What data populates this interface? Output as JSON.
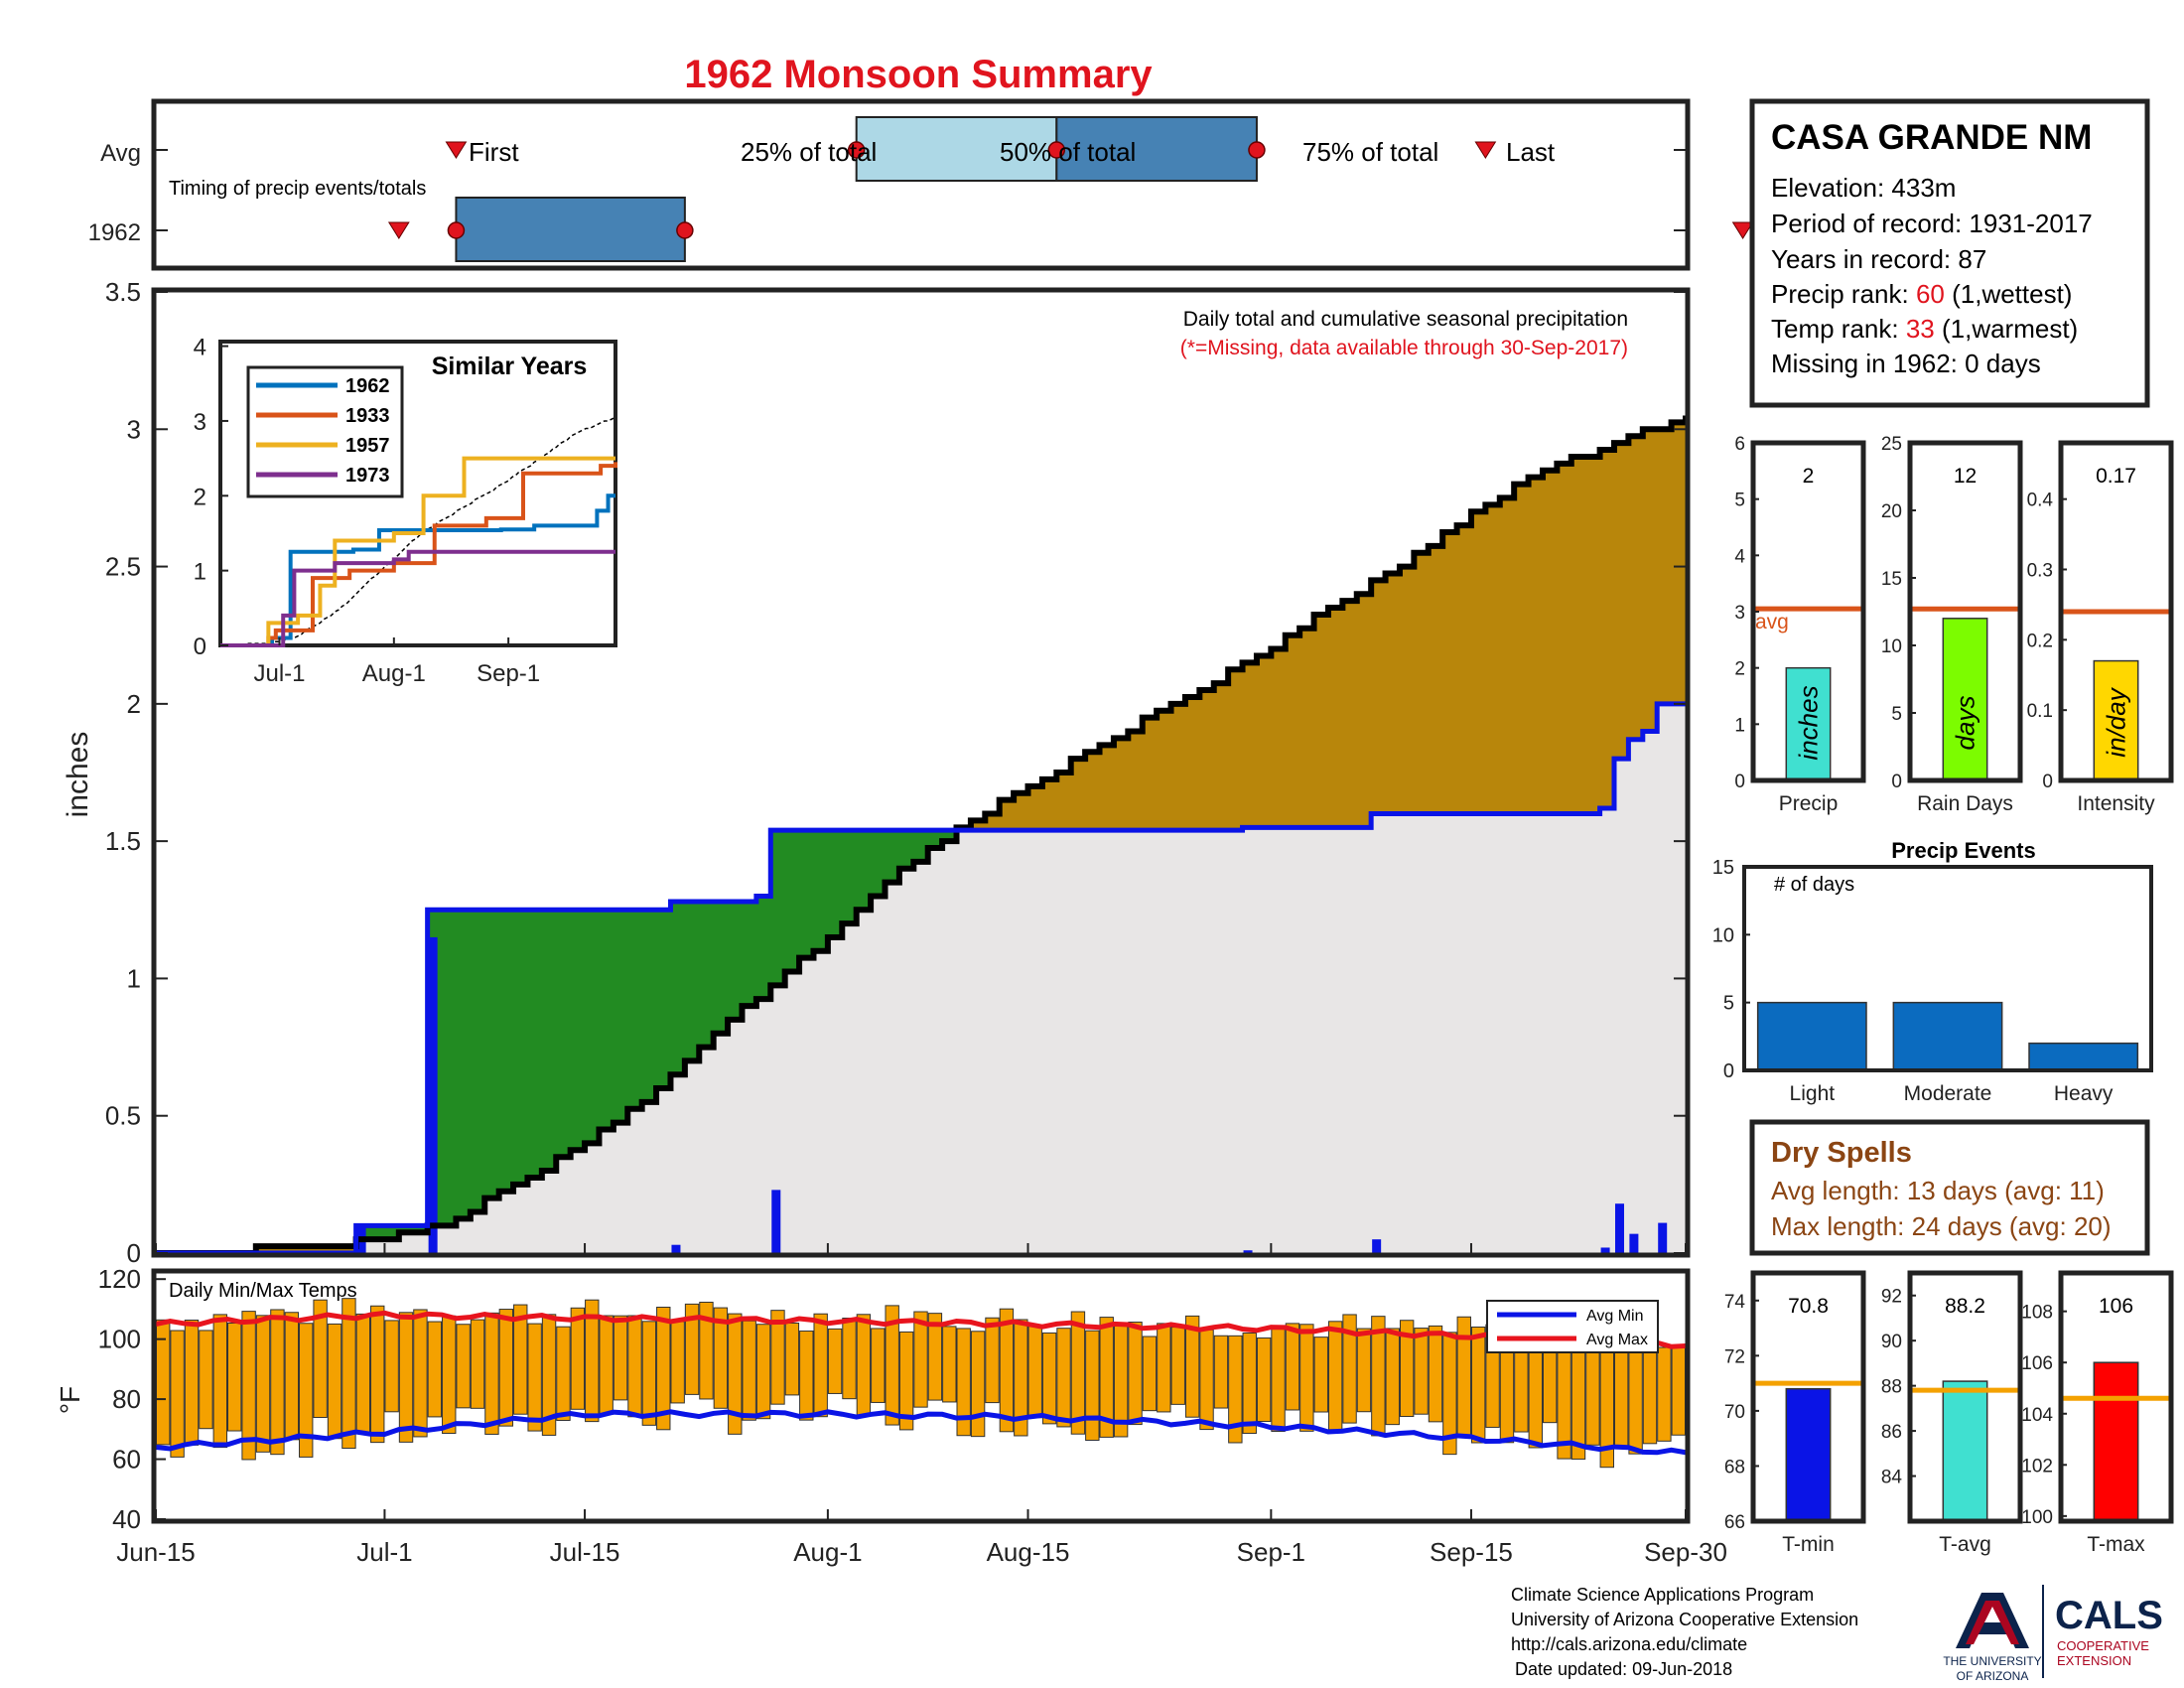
{
  "title": "1962 Monsoon Summary",
  "station": {
    "name": "CASA GRANDE NM",
    "elevation": "Elevation: 433m",
    "period": "Period of record: 1931-2017",
    "years": "Years in record: 87",
    "precip_rank_label": "Precip rank: ",
    "precip_rank_value": "60",
    "precip_rank_suffix": " (1,wettest)",
    "temp_rank_label": "Temp rank: ",
    "temp_rank_value": "33",
    "temp_rank_suffix": " (1,warmest)",
    "missing": "Missing in 1962: 0 days"
  },
  "timing": {
    "row_avg": "Avg",
    "row_year": "1962",
    "subtitle": "Timing of precip events/totals",
    "first": "First",
    "last": "Last",
    "p25": "25% of total",
    "p50": "50% of total",
    "p75": "75% of total",
    "avg_markers_day": {
      "first": 21,
      "p25": 49,
      "p50": 63,
      "p75": 77,
      "last": 93
    },
    "year_markers_day": {
      "first": 17,
      "p25": 21,
      "p50": 37,
      "last": 111
    }
  },
  "main": {
    "ylabel": "inches",
    "note1": "Daily total and cumulative seasonal precipitation",
    "note2": "(*=Missing, data available through 30-Sep-2017)",
    "yticks": [
      "0",
      "0.5",
      "1",
      "1.5",
      "2",
      "2.5",
      "3",
      "3.5"
    ],
    "xticks": [
      "Jun-15",
      "Jul-1",
      "Jul-15",
      "Aug-1",
      "Aug-15",
      "Sep-1",
      "Sep-15",
      "Sep-30"
    ]
  },
  "inset": {
    "title": "Similar Years",
    "yticks": [
      "0",
      "1",
      "2",
      "3",
      "4"
    ],
    "xticks": [
      "Jul-1",
      "Aug-1",
      "Sep-1"
    ],
    "legend": [
      "1962",
      "1933",
      "1957",
      "1973"
    ]
  },
  "temps": {
    "label": "Daily Min/Max Temps",
    "ylabel": "°F",
    "yticks": [
      "40",
      "60",
      "80",
      "100",
      "120"
    ],
    "legend_min": "Avg Min",
    "legend_max": "Avg Max"
  },
  "summary_bars": {
    "precip": {
      "value_text": "2",
      "unit": "inches",
      "label": "Precip",
      "yticks": [
        "0",
        "1",
        "2",
        "3",
        "4",
        "5",
        "6"
      ],
      "avg_label": "avg"
    },
    "rain_days": {
      "value_text": "12",
      "unit": "days",
      "label": "Rain Days",
      "yticks": [
        "0",
        "5",
        "10",
        "15",
        "20",
        "25"
      ]
    },
    "intensity": {
      "value_text": "0.17",
      "unit": "in/day",
      "label": "Intensity",
      "yticks": [
        "0",
        "0.1",
        "0.2",
        "0.3",
        "0.4"
      ]
    }
  },
  "events": {
    "title": "Precip Events",
    "sublabel": "# of days",
    "yticks": [
      "0",
      "5",
      "10",
      "15"
    ],
    "categories": [
      "Light",
      "Moderate",
      "Heavy"
    ]
  },
  "dry_spells": {
    "title": "Dry Spells",
    "avg_line": "Avg length: 13 days (avg: 11)",
    "max_line": "Max length: 24 days (avg: 20)"
  },
  "temp_bars": {
    "tmin": {
      "value_text": "70.8",
      "label": "T-min",
      "yticks": [
        "66",
        "68",
        "70",
        "72",
        "74"
      ]
    },
    "tavg": {
      "value_text": "88.2",
      "label": "T-avg",
      "yticks": [
        "84",
        "86",
        "88",
        "90",
        "92"
      ]
    },
    "tmax": {
      "value_text": "106",
      "label": "T-max",
      "yticks": [
        "100",
        "102",
        "104",
        "106",
        "108"
      ]
    }
  },
  "footer": {
    "line1": "Climate Science Applications Program",
    "line2": "University of Arizona Cooperative Extension",
    "line3": "http://cals.arizona.edu/climate",
    "line4": "Date updated: 09-Jun-2018",
    "ua_logo_line1": "THE UNIVERSITY",
    "ua_logo_line2": "OF ARIZONA",
    "cals_logo": "CALS",
    "cals_sub1": "COOPERATIVE",
    "cals_sub2": "EXTENSION"
  },
  "colors": {
    "year_line": "#0a14e6",
    "avg_fill": "#b8860b",
    "surplus_fill": "#228b22",
    "base_fill": "#e8e6e6",
    "temp_bar": "#f4a100",
    "avg_max_line": "#e8141e",
    "avg_min_line": "#0a14e6",
    "precip_bar": "#40e0d0",
    "rain_days_bar": "#7cfc00",
    "intensity_bar": "#ffd700",
    "tmin_bar": "#0a14e6",
    "tavg_bar": "#40e0d0",
    "tmax_bar": "#ff0000",
    "avg_line_orange": "#d9541a",
    "events_bar": "#0b6bbf"
  },
  "chart_data": [
    {
      "type": "area",
      "title": "Daily total and cumulative seasonal precipitation",
      "xlabel": "",
      "ylabel": "inches",
      "ylim": [
        0,
        3.5
      ],
      "xlim": [
        "Jun-15",
        "Sep-30"
      ],
      "series": [
        {
          "name": "1962",
          "points": [
            [
              "Jun-15",
              0
            ],
            [
              "Jun-28",
              0
            ],
            [
              "Jun-29",
              0.1
            ],
            [
              "Jul-3",
              0.1
            ],
            [
              "Jul-4",
              1.25
            ],
            [
              "Jul-20",
              1.25
            ],
            [
              "Jul-21",
              1.28
            ],
            [
              "Jul-27",
              1.3
            ],
            [
              "Jul-28",
              1.54
            ],
            [
              "Aug-29",
              1.54
            ],
            [
              "Aug-30",
              1.55
            ],
            [
              "Sep-7",
              1.55
            ],
            [
              "Sep-8",
              1.6
            ],
            [
              "Sep-23",
              1.6
            ],
            [
              "Sep-24",
              1.62
            ],
            [
              "Sep-25",
              1.8
            ],
            [
              "Sep-26",
              1.87
            ],
            [
              "Sep-27",
              1.9
            ],
            [
              "Sep-28",
              2.0
            ],
            [
              "Sep-30",
              2.0
            ]
          ]
        },
        {
          "name": "",
          "points": [
            [
              "Jun-15",
              0
            ],
            [
              "Jun-20",
              0.01
            ],
            [
              "Jun-25",
              0.02
            ],
            [
              "Jul-1",
              0.05
            ],
            [
              "Jul-5",
              0.1
            ],
            [
              "Jul-10",
              0.25
            ],
            [
              "Jul-15",
              0.4
            ],
            [
              "Jul-20",
              0.6
            ],
            [
              "Jul-25",
              0.85
            ],
            [
              "Aug-1",
              1.15
            ],
            [
              "Aug-5",
              1.35
            ],
            [
              "Aug-10",
              1.55
            ],
            [
              "Aug-15",
              1.7
            ],
            [
              "Aug-20",
              1.85
            ],
            [
              "Aug-25",
              2.0
            ],
            [
              "Sep-1",
              2.2
            ],
            [
              "Sep-5",
              2.35
            ],
            [
              "Sep-10",
              2.5
            ],
            [
              "Sep-15",
              2.7
            ],
            [
              "Sep-20",
              2.85
            ],
            [
              "Sep-25",
              2.95
            ],
            [
              "Sep-30",
              3.05
            ]
          ]
        }
      ],
      "daily_precip": [
        [
          "Jun-29",
          0.1
        ],
        [
          "Jul-4",
          1.15
        ],
        [
          "Jul-21",
          0.03
        ],
        [
          "Jul-28",
          0.23
        ],
        [
          "Aug-30",
          0.01
        ],
        [
          "Sep-8",
          0.05
        ],
        [
          "Sep-24",
          0.02
        ],
        [
          "Sep-25",
          0.18
        ],
        [
          "Sep-26",
          0.07
        ],
        [
          "Sep-28",
          0.11
        ]
      ]
    },
    {
      "type": "line",
      "title": "Similar Years",
      "ylim": [
        0,
        4
      ],
      "series": [
        {
          "name": "1962",
          "points": [
            [
              "Jun-15",
              0
            ],
            [
              "Jun-29",
              0.1
            ],
            [
              "Jul-4",
              1.25
            ],
            [
              "Jul-21",
              1.28
            ],
            [
              "Jul-28",
              1.54
            ],
            [
              "Aug-30",
              1.55
            ],
            [
              "Sep-8",
              1.6
            ],
            [
              "Sep-25",
              1.8
            ],
            [
              "Sep-28",
              2.0
            ],
            [
              "Sep-30",
              2.0
            ]
          ]
        },
        {
          "name": "1933",
          "points": [
            [
              "Jun-15",
              0
            ],
            [
              "Jun-28",
              0.1
            ],
            [
              "Jun-30",
              0.2
            ],
            [
              "Jul-10",
              0.9
            ],
            [
              "Jul-20",
              1.0
            ],
            [
              "Aug-1",
              1.1
            ],
            [
              "Aug-12",
              1.6
            ],
            [
              "Aug-26",
              1.7
            ],
            [
              "Sep-5",
              2.3
            ],
            [
              "Sep-26",
              2.4
            ],
            [
              "Sep-30",
              2.45
            ]
          ]
        },
        {
          "name": "1957",
          "points": [
            [
              "Jun-15",
              0
            ],
            [
              "Jun-28",
              0.3
            ],
            [
              "Jul-6",
              0.4
            ],
            [
              "Jul-12",
              0.8
            ],
            [
              "Jul-16",
              1.4
            ],
            [
              "Aug-1",
              1.5
            ],
            [
              "Aug-9",
              2.0
            ],
            [
              "Aug-20",
              2.5
            ],
            [
              "Sep-30",
              2.5
            ]
          ]
        },
        {
          "name": "1973",
          "points": [
            [
              "Jun-15",
              0
            ],
            [
              "Jul-2",
              0.4
            ],
            [
              "Jul-5",
              1.0
            ],
            [
              "Jul-16",
              1.1
            ],
            [
              "Aug-1",
              1.15
            ],
            [
              "Aug-5",
              1.25
            ],
            [
              "Sep-30",
              1.25
            ]
          ]
        }
      ]
    },
    {
      "type": "bar",
      "title": "Daily Min/Max Temps",
      "ylabel": "°F",
      "ylim": [
        40,
        120
      ],
      "series": [
        {
          "name": "Avg Max",
          "points": [
            [
              "Jun-15",
              105
            ],
            [
              "Jun-25",
              107
            ],
            [
              "Jul-1",
              108
            ],
            [
              "Jul-15",
              107
            ],
            [
              "Aug-1",
              106
            ],
            [
              "Aug-15",
              105
            ],
            [
              "Sep-1",
              103.5
            ],
            [
              "Sep-15",
              101
            ],
            [
              "Sep-30",
              98
            ]
          ]
        },
        {
          "name": "Avg Min",
          "points": [
            [
              "Jun-15",
              64
            ],
            [
              "Jun-25",
              67
            ],
            [
              "Jul-1",
              69
            ],
            [
              "Jul-15",
              75
            ],
            [
              "Aug-1",
              75
            ],
            [
              "Aug-15",
              74
            ],
            [
              "Sep-1",
              71
            ],
            [
              "Sep-15",
              67
            ],
            [
              "Sep-30",
              62
            ]
          ]
        }
      ]
    },
    {
      "type": "bar",
      "title": "Precip",
      "categories": [
        "Precip"
      ],
      "values": [
        2.0
      ],
      "avg": 3.05,
      "ylim": [
        0,
        6
      ]
    },
    {
      "type": "bar",
      "title": "Rain Days",
      "categories": [
        "Rain Days"
      ],
      "values": [
        12
      ],
      "avg": 12.7,
      "ylim": [
        0,
        25
      ]
    },
    {
      "type": "bar",
      "title": "Intensity",
      "categories": [
        "Intensity"
      ],
      "values": [
        0.17
      ],
      "avg": 0.24,
      "ylim": [
        0,
        0.48
      ]
    },
    {
      "type": "bar",
      "title": "Precip Events",
      "categories": [
        "Light",
        "Moderate",
        "Heavy"
      ],
      "values": [
        5,
        5,
        2
      ],
      "ylim": [
        0,
        15
      ]
    },
    {
      "type": "bar",
      "title": "T-min",
      "categories": [
        "T-min"
      ],
      "values": [
        70.8
      ],
      "avg": 71.0,
      "ylim": [
        66,
        75
      ]
    },
    {
      "type": "bar",
      "title": "T-avg",
      "categories": [
        "T-avg"
      ],
      "values": [
        88.2
      ],
      "avg": 87.8,
      "ylim": [
        82,
        93
      ]
    },
    {
      "type": "bar",
      "title": "T-max",
      "categories": [
        "T-max"
      ],
      "values": [
        106
      ],
      "avg": 104.6,
      "ylim": [
        99.8,
        109.5
      ]
    }
  ]
}
